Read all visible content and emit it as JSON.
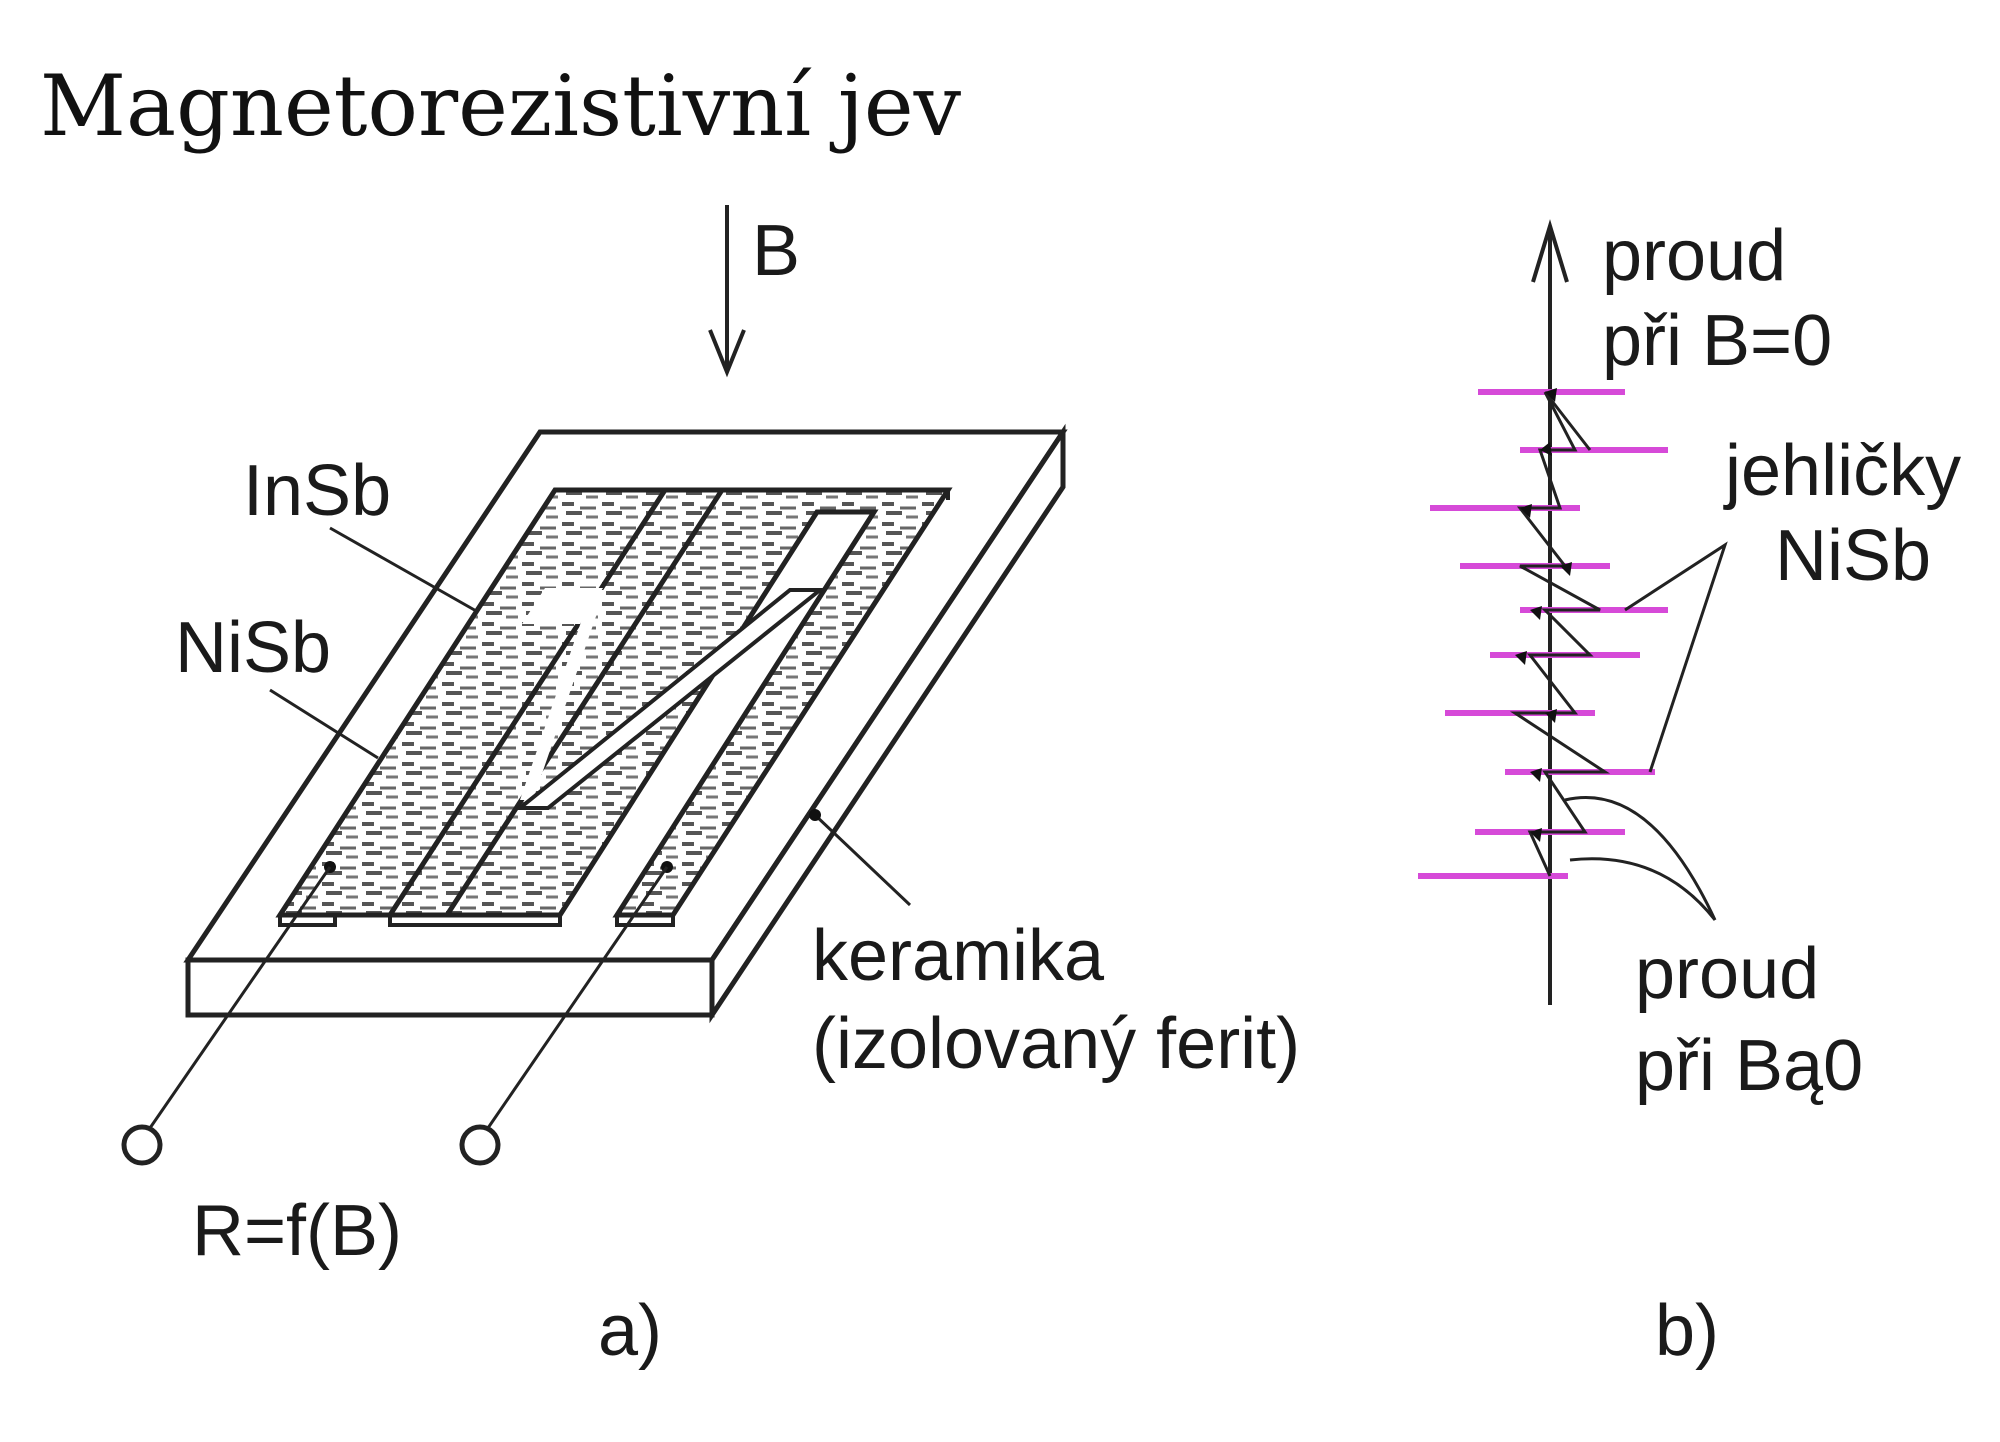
{
  "title": "Magnetorezistivní jev",
  "diagram_a": {
    "field_label": "B",
    "insb_label": "InSb",
    "nisb_label": "NiSb",
    "substrate_label_line1": "keramika",
    "substrate_label_line2": "(izolovaný ferit)",
    "resistance_label": "R=f(B)",
    "caption": "a)"
  },
  "diagram_b": {
    "current_b0_line1": "proud",
    "current_b0_line2": "při B=0",
    "needles_line1": "jehličky",
    "needles_line2": "NiSb",
    "current_b_line1": "proud",
    "current_b_line2": "při Bą0",
    "caption": "b)"
  },
  "colors": {
    "needle": "#d64ad8",
    "ink": "#222222"
  }
}
